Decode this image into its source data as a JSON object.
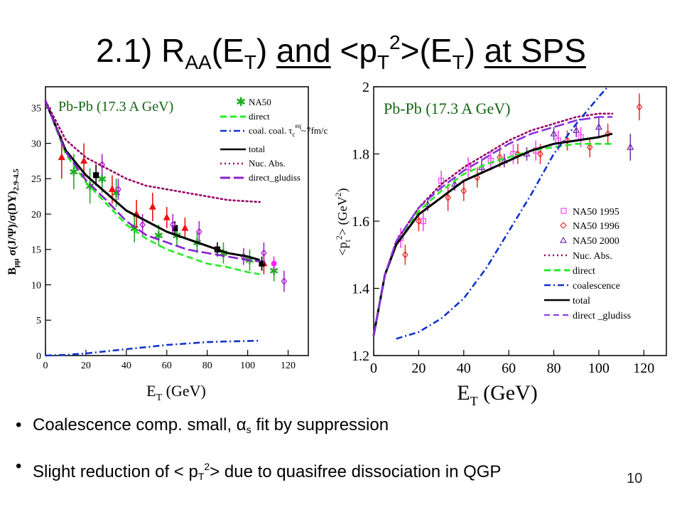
{
  "slide": {
    "title": {
      "prefix": "2.1) R",
      "raa_sub": "AA",
      "p1": "(E",
      "t_sub1": "T",
      "p2": ") ",
      "and_word": "and",
      "p3": " <p",
      "t_sub2": "T",
      "sup2": "2",
      "p4": ">(E",
      "t_sub3": "T",
      "p5": ") ",
      "at_sps": "at SPS"
    },
    "bullets": {
      "b1_before": "Coalescence comp. small, ",
      "b1_alpha": "α",
      "b1_alpha_sub": "s",
      "b1_after": " fit by suppression",
      "b2_before": "Slight reduction of < p",
      "b2_sub": "T",
      "b2_sup": "2",
      "b2_after": "> due to quasifree dissociation in QGP"
    },
    "page_number": "10"
  },
  "chart_data": [
    {
      "type": "line",
      "panel": "left",
      "plot_label": "Pb-Pb (17.3 A GeV)",
      "xlabel": "E",
      "xlabel_sub": "T",
      "xlabel_unit": " (GeV)",
      "ylabel": "B_μμ σ(J/Ψ)/σ(DY)_2.9-4.5",
      "xlim": [
        0,
        130
      ],
      "ylim": [
        0,
        38
      ],
      "xticks": [
        0,
        20,
        40,
        60,
        80,
        100,
        120
      ],
      "yticks": [
        0,
        5,
        10,
        15,
        20,
        25,
        30,
        35
      ],
      "legend": {
        "position": "top-right",
        "coal_tau_label": "coal. τ",
        "coal_tau_sub": "c",
        "coal_tau_sup": "eq",
        "coal_tau_tail": "~7fm/c"
      },
      "series": [
        {
          "name": "NA50",
          "kind": "points",
          "marker": "star",
          "color": "#22aa22",
          "x": [
            14,
            22,
            28,
            35,
            44,
            56,
            65,
            75,
            88,
            101,
            113
          ],
          "y": [
            26,
            24,
            25,
            23,
            18,
            17,
            17,
            16,
            14.5,
            13.5,
            12
          ],
          "err": [
            2.5,
            2.5,
            2,
            2,
            2,
            1.5,
            1.5,
            1.5,
            1.5,
            1.5,
            1.5
          ]
        },
        {
          "name": "",
          "kind": "points",
          "marker": "triangle",
          "color": "#ee1111",
          "x": [
            8,
            19,
            33,
            45,
            53,
            60,
            69,
            108
          ],
          "y": [
            28,
            27.5,
            23.5,
            20,
            21,
            19.5,
            18,
            13
          ],
          "err": [
            3,
            2.5,
            2,
            2,
            2,
            1.5,
            1.5,
            1.5
          ]
        },
        {
          "name": "",
          "kind": "points",
          "marker": "square",
          "color": "#000000",
          "x": [
            25,
            64,
            85,
            107
          ],
          "y": [
            25.5,
            18,
            15,
            13
          ],
          "err": [
            1.5,
            1,
            1,
            1
          ]
        },
        {
          "name": "",
          "kind": "points",
          "marker": "diamond",
          "color": "#aa22cc",
          "x": [
            28,
            36,
            48,
            63,
            76,
            98,
            108,
            118
          ],
          "y": [
            27,
            23.5,
            18.5,
            18.5,
            17.5,
            14,
            14.5,
            10.5
          ],
          "err": [
            1.5,
            1.5,
            1.5,
            1.5,
            1.5,
            1.2,
            1.5,
            1.5
          ]
        },
        {
          "name": "",
          "kind": "points",
          "marker": "circle",
          "color": "#ff22ff",
          "x": [
            113
          ],
          "y": [
            13
          ],
          "err": [
            1
          ]
        },
        {
          "name": "direct",
          "kind": "line",
          "style": "dashed",
          "color": "#22ee22",
          "x": [
            0,
            10,
            20,
            30,
            40,
            50,
            60,
            70,
            80,
            90,
            100,
            106
          ],
          "y": [
            36,
            28.5,
            24.5,
            21.5,
            18.5,
            16.5,
            15,
            14,
            13,
            12.5,
            11.8,
            11.5
          ]
        },
        {
          "name": "coal.",
          "kind": "line",
          "style": "dashdot",
          "color": "#1133cc",
          "x": [
            0,
            10,
            20,
            30,
            40,
            50,
            60,
            70,
            80,
            90,
            100,
            106
          ],
          "y": [
            0,
            0.1,
            0.3,
            0.6,
            0.9,
            1.2,
            1.5,
            1.7,
            1.9,
            2.0,
            2.05,
            2.1
          ]
        },
        {
          "name": "total",
          "kind": "line",
          "style": "solid",
          "color": "#000000",
          "x": [
            0,
            10,
            20,
            30,
            40,
            50,
            60,
            70,
            80,
            90,
            100,
            106
          ],
          "y": [
            36,
            29,
            25.5,
            23,
            20.5,
            19,
            17.5,
            16.5,
            15.5,
            14.5,
            14,
            13.5
          ]
        },
        {
          "name": "Nuc. Abs.",
          "kind": "line",
          "style": "dotted",
          "color": "#990066",
          "x": [
            0,
            10,
            20,
            30,
            40,
            50,
            60,
            70,
            80,
            90,
            100,
            106
          ],
          "y": [
            36,
            30.5,
            28,
            26.5,
            25,
            24,
            23.5,
            23,
            22.5,
            22,
            21.8,
            21.7
          ]
        },
        {
          "name": "direct_gludiss",
          "kind": "line",
          "style": "longdash",
          "color": "#8822cc",
          "x": [
            0,
            10,
            20,
            30,
            40,
            50,
            60,
            70,
            80,
            90,
            100,
            106
          ],
          "y": [
            36,
            28.8,
            24.8,
            22,
            19,
            17,
            16,
            15,
            14.5,
            14,
            13.5,
            13.3
          ]
        }
      ]
    },
    {
      "type": "line",
      "panel": "right",
      "plot_label": "Pb-Pb (17.3 A GeV)",
      "xlabel": "E",
      "xlabel_sub": "T",
      "xlabel_unit": " (GeV)",
      "ylabel": "<p_t^2> (GeV^2)",
      "xlim": [
        0,
        130
      ],
      "ylim": [
        1.2,
        2.0
      ],
      "xticks": [
        0,
        20,
        40,
        60,
        80,
        100,
        120
      ],
      "yticks": [
        1.2,
        1.4,
        1.6,
        1.8,
        2
      ],
      "legend": {
        "position": "bottom-right"
      },
      "series": [
        {
          "name": "NA50 1995",
          "kind": "points",
          "marker": "square",
          "color": "#ff44ff",
          "x": [
            12,
            22,
            30,
            42,
            52,
            62,
            72,
            82,
            92
          ],
          "y": [
            1.55,
            1.6,
            1.72,
            1.76,
            1.78,
            1.8,
            1.81,
            1.84,
            1.85
          ],
          "err": [
            0.03,
            0.03,
            0.03,
            0.03,
            0.03,
            0.03,
            0.03,
            0.03,
            0.03
          ]
        },
        {
          "name": "NA50 1996",
          "kind": "points",
          "marker": "diamond",
          "color": "#ee3333",
          "x": [
            14,
            20,
            33,
            40,
            46,
            56,
            64,
            74,
            86,
            96,
            104,
            118
          ],
          "y": [
            1.5,
            1.6,
            1.67,
            1.69,
            1.73,
            1.79,
            1.8,
            1.8,
            1.84,
            1.82,
            1.86,
            1.94
          ],
          "err": [
            0.03,
            0.03,
            0.04,
            0.03,
            0.03,
            0.03,
            0.03,
            0.03,
            0.03,
            0.03,
            0.03,
            0.04
          ]
        },
        {
          "name": "NA50 2000",
          "kind": "points",
          "marker": "triangle",
          "color": "#7733aa",
          "x": [
            24,
            36,
            48,
            58,
            68,
            80,
            90,
            100,
            114
          ],
          "y": [
            1.65,
            1.71,
            1.76,
            1.78,
            1.8,
            1.86,
            1.87,
            1.88,
            1.82
          ],
          "err": [
            0.02,
            0.02,
            0.02,
            0.02,
            0.02,
            0.02,
            0.02,
            0.03,
            0.04
          ]
        },
        {
          "name": "Nuc. Abs.",
          "kind": "line",
          "style": "dotted",
          "color": "#990066",
          "x": [
            0,
            5,
            10,
            20,
            30,
            40,
            50,
            60,
            70,
            80,
            90,
            100,
            106
          ],
          "y": [
            1.26,
            1.44,
            1.54,
            1.64,
            1.71,
            1.76,
            1.8,
            1.84,
            1.87,
            1.89,
            1.91,
            1.92,
            1.92
          ]
        },
        {
          "name": "direct",
          "kind": "line",
          "style": "dashed",
          "color": "#22ee22",
          "x": [
            0,
            5,
            10,
            20,
            30,
            40,
            50,
            60,
            70,
            80,
            90,
            100,
            106
          ],
          "y": [
            1.26,
            1.44,
            1.53,
            1.63,
            1.69,
            1.74,
            1.77,
            1.79,
            1.81,
            1.82,
            1.83,
            1.83,
            1.83
          ]
        },
        {
          "name": "coalescence",
          "kind": "line",
          "style": "dashdot",
          "color": "#1133cc",
          "x": [
            10,
            20,
            30,
            40,
            50,
            60,
            70,
            80,
            90,
            100,
            104
          ],
          "y": [
            1.25,
            1.27,
            1.31,
            1.37,
            1.46,
            1.57,
            1.68,
            1.8,
            1.89,
            1.97,
            2.0
          ]
        },
        {
          "name": "total",
          "kind": "line",
          "style": "solid",
          "color": "#000000",
          "x": [
            0,
            5,
            10,
            20,
            30,
            40,
            50,
            60,
            70,
            80,
            90,
            100,
            106
          ],
          "y": [
            1.26,
            1.44,
            1.53,
            1.62,
            1.67,
            1.72,
            1.75,
            1.78,
            1.81,
            1.83,
            1.84,
            1.85,
            1.86
          ]
        },
        {
          "name": "direct _gludiss",
          "kind": "line",
          "style": "longdash",
          "color": "#8833dd",
          "x": [
            0,
            5,
            10,
            20,
            30,
            40,
            50,
            60,
            70,
            80,
            90,
            100,
            106
          ],
          "y": [
            1.26,
            1.44,
            1.54,
            1.64,
            1.7,
            1.75,
            1.79,
            1.83,
            1.86,
            1.88,
            1.9,
            1.91,
            1.91
          ]
        }
      ]
    }
  ]
}
